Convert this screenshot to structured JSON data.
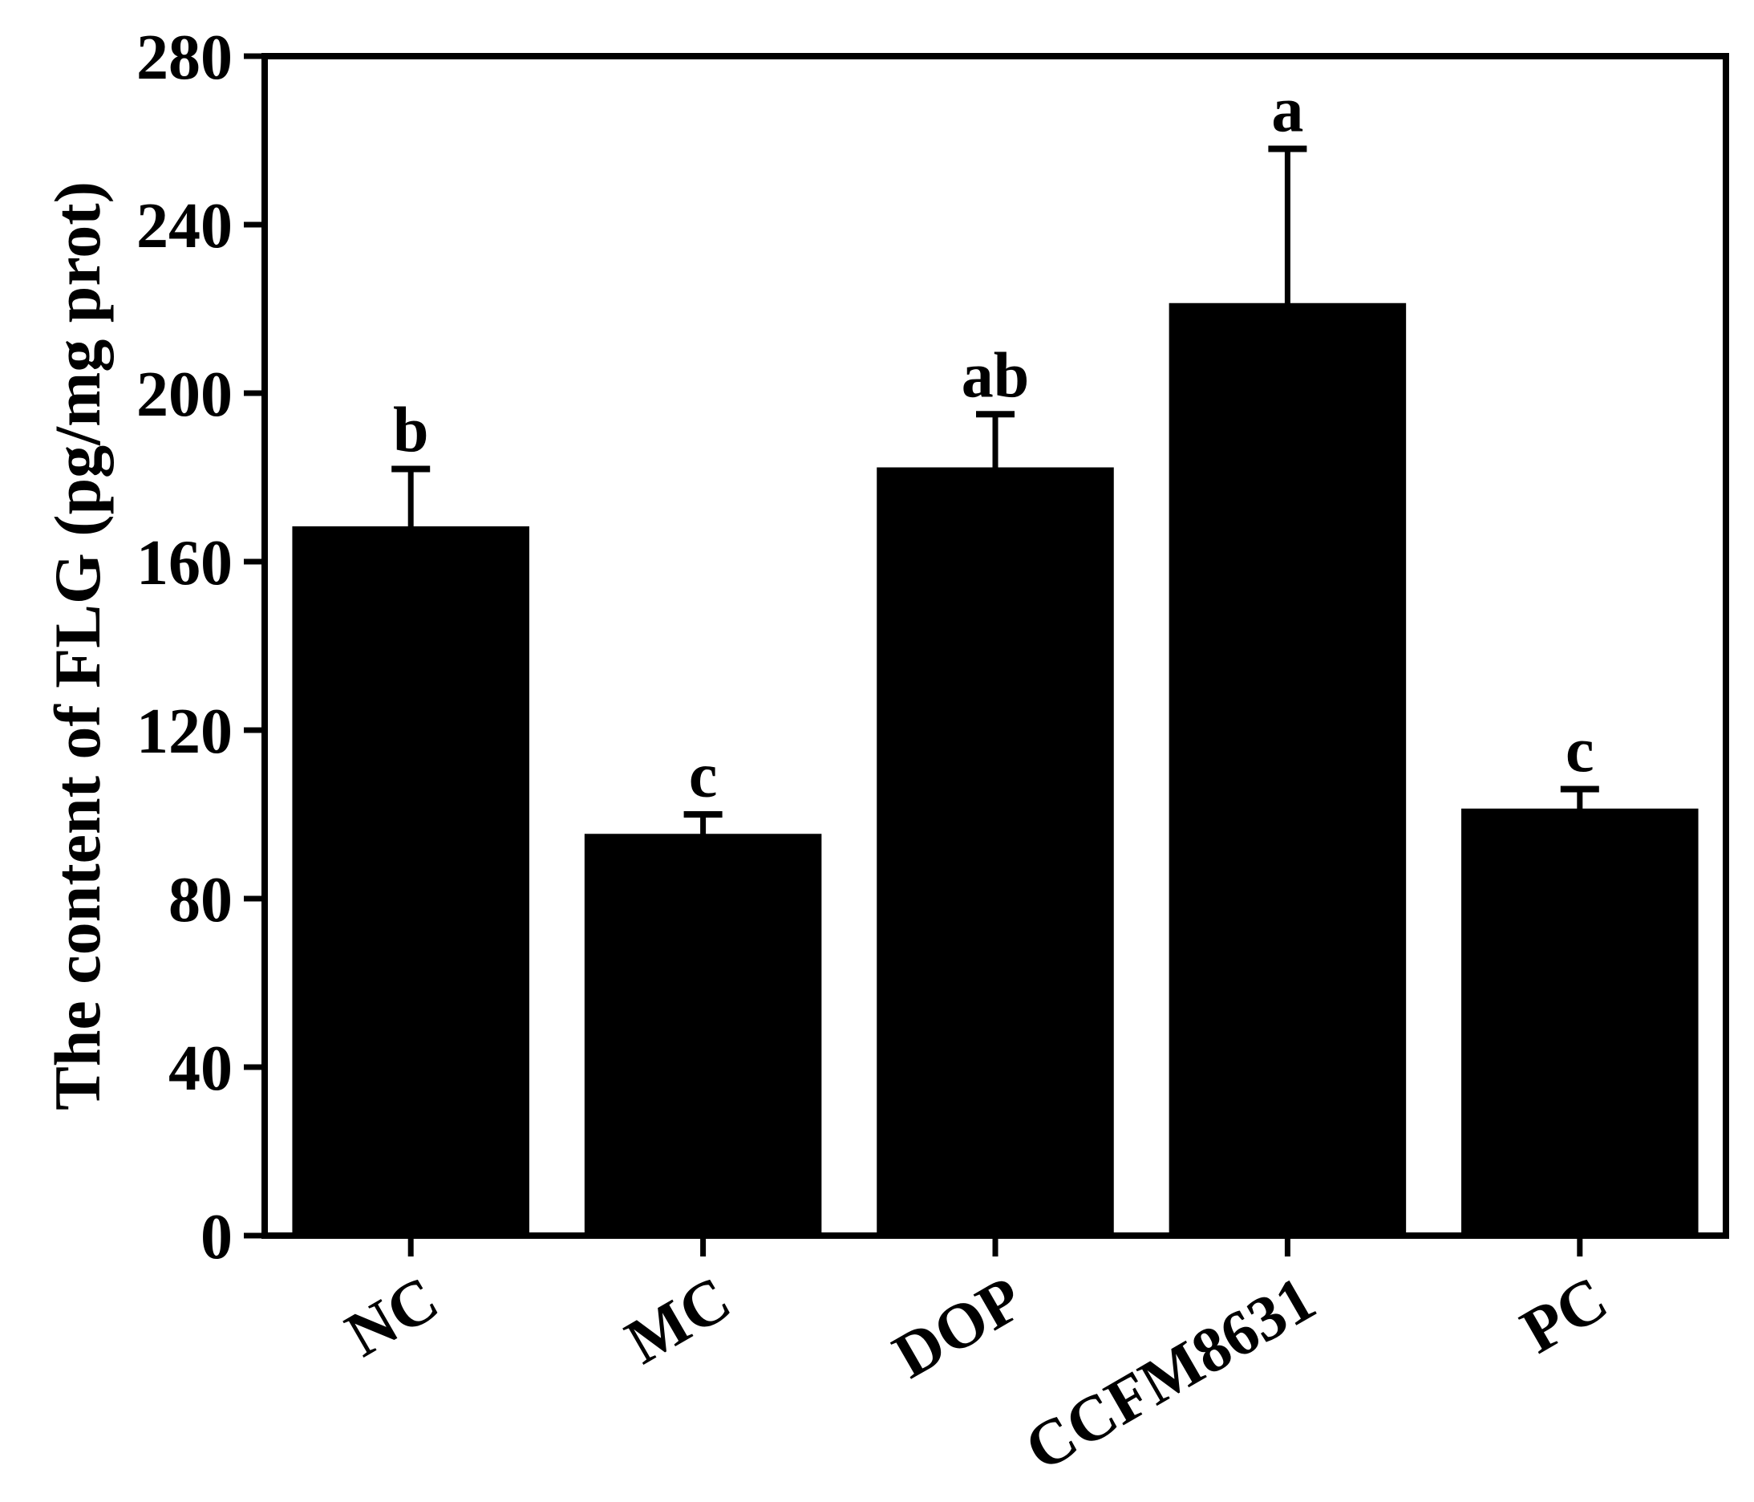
{
  "chart_data": {
    "type": "bar",
    "title": "",
    "xlabel": "",
    "ylabel": "The content of FLG (pg/mg prot)",
    "ylim": [
      0,
      280
    ],
    "yticks": [
      0,
      40,
      80,
      120,
      160,
      200,
      240,
      280
    ],
    "categories": [
      "NC",
      "MC",
      "DOP",
      "CCFM8631",
      "PC"
    ],
    "values": [
      168,
      95,
      182,
      221,
      101
    ],
    "error_upper": [
      14,
      5,
      13,
      37,
      5
    ],
    "significance_labels": [
      "b",
      "c",
      "ab",
      "a",
      "c"
    ],
    "bar_color": "#000000",
    "grid": false,
    "legend": "none"
  }
}
